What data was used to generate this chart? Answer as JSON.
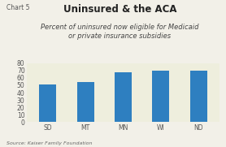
{
  "title": "Uninsured & the ACA",
  "subtitle": "Percent of uninsured now eligible for Medicaid\nor private insurance subsidies",
  "chart_label": "Chart 5",
  "source": "Source: Kaiser Family Foundation",
  "categories": [
    "SD",
    "MT",
    "MN",
    "WI",
    "ND"
  ],
  "values": [
    51,
    54,
    68,
    70,
    70
  ],
  "bar_color": "#2e7fc0",
  "background_color": "#EEEEDD",
  "outer_background": "#F2F0E8",
  "ylim": [
    0,
    80
  ],
  "yticks": [
    0,
    10,
    20,
    30,
    40,
    50,
    60,
    70,
    80
  ],
  "title_fontsize": 8.5,
  "subtitle_fontsize": 6.0,
  "tick_fontsize": 5.5,
  "source_fontsize": 4.5,
  "chart_label_fontsize": 5.5,
  "title_color": "#222222",
  "subtitle_color": "#444444",
  "tick_color": "#555555",
  "source_color": "#666666",
  "chart_label_color": "#555555"
}
